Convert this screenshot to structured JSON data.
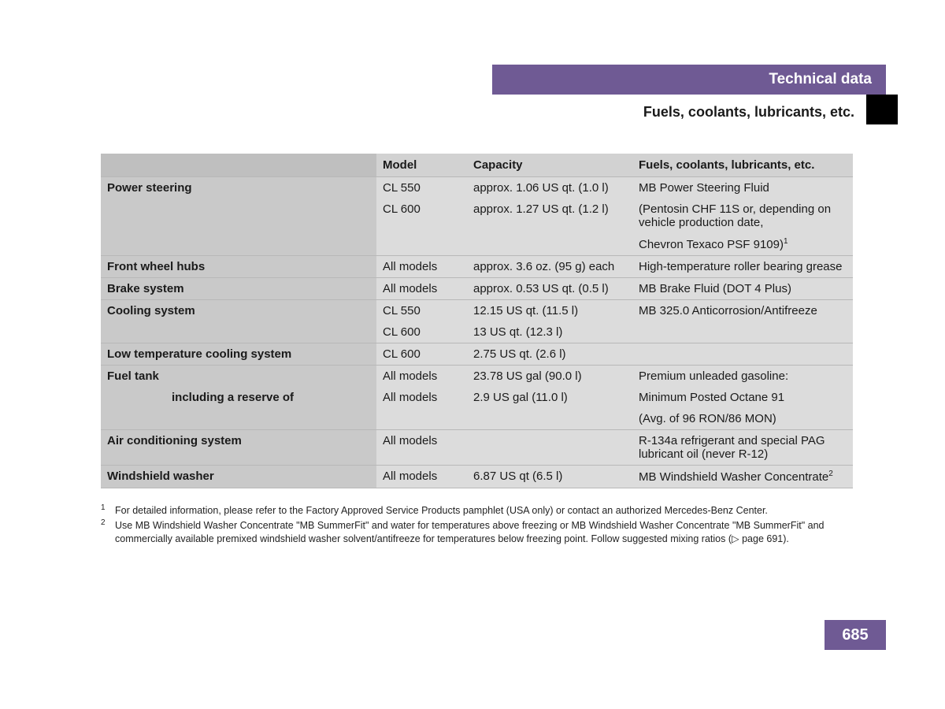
{
  "header": {
    "title": "Technical data",
    "subtitle": "Fuels, coolants, lubricants, etc."
  },
  "table": {
    "columns": [
      "",
      "Model",
      "Capacity",
      "Fuels, coolants, lubricants, etc."
    ],
    "rows": [
      {
        "component": "Power steering",
        "model": "CL 550",
        "capacity": "approx. 1.06 US qt. (1.0 l)",
        "fluid": "MB Power Steering Fluid",
        "border": false
      },
      {
        "component": "",
        "model": "CL 600",
        "capacity": "approx. 1.27 US qt. (1.2 l)",
        "fluid": "(Pentosin CHF 11S or, depending on vehicle production date,",
        "border": false
      },
      {
        "component": "",
        "model": "",
        "capacity": "",
        "fluid": "Chevron Texaco PSF 9109)",
        "sup": "1",
        "border": true
      },
      {
        "component": "Front wheel hubs",
        "model": "All models",
        "capacity": "approx. 3.6 oz. (95 g) each",
        "fluid": "High-temperature roller bearing grease",
        "border": true
      },
      {
        "component": "Brake system",
        "model": "All models",
        "capacity": "approx. 0.53 US qt. (0.5 l)",
        "fluid": "MB Brake Fluid (DOT 4 Plus)",
        "border": true
      },
      {
        "component": "Cooling system",
        "model": "CL 550",
        "capacity": "12.15 US qt. (11.5 l)",
        "fluid": "MB 325.0 Anticorrosion/Antifreeze",
        "border": false
      },
      {
        "component": "",
        "model": "CL 600",
        "capacity": "13 US qt. (12.3 l)",
        "fluid": "",
        "border": true
      },
      {
        "component": "Low temperature cooling system",
        "model": "CL 600",
        "capacity": "2.75 US qt. (2.6 l)",
        "fluid": "",
        "border": true
      },
      {
        "component": "Fuel tank",
        "model": "All models",
        "capacity": "23.78 US gal (90.0 l)",
        "fluid": "Premium unleaded gasoline:",
        "border": false
      },
      {
        "component": "including a reserve of",
        "sub": true,
        "model": "All models",
        "capacity": "2.9 US gal (11.0 l)",
        "fluid": "Minimum Posted Octane 91",
        "border": false
      },
      {
        "component": "",
        "model": "",
        "capacity": "",
        "fluid": "(Avg. of 96 RON/86 MON)",
        "border": true
      },
      {
        "component": "Air conditioning system",
        "model": "All models",
        "capacity": "",
        "fluid": "R-134a refrigerant and special PAG lubricant oil (never R-12)",
        "border": true
      },
      {
        "component": "Windshield washer",
        "model": "All models",
        "capacity": "6.87 US qt (6.5 l)",
        "fluid": "MB Windshield Washer Concentrate",
        "sup": "2",
        "border": true
      }
    ]
  },
  "footnotes": [
    {
      "num": "1",
      "text": "For detailed information, please refer to the Factory Approved Service Products pamphlet (USA only) or contact an authorized Mercedes-Benz Center."
    },
    {
      "num": "2",
      "text": "Use MB Windshield Washer Concentrate \"MB SummerFit\" and water for temperatures above freezing or MB Windshield Washer Concentrate \"MB SummerFit\" and commercially available premixed windshield washer solvent/antifreeze for temperatures below freezing point. Follow suggested mixing ratios (▷ page 691)."
    }
  ],
  "page_number": "685",
  "colors": {
    "header_bg": "#6f5a94",
    "header_text": "#ffffff",
    "th_bg": "#d2d2d2",
    "label_bg": "#c9c9c9",
    "cell_bg": "#dcdcdc",
    "border": "#b8b8b8"
  }
}
